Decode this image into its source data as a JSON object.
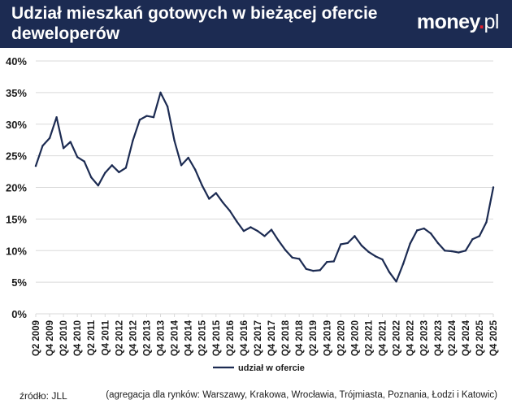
{
  "header": {
    "title": "Udział mieszkań gotowych w bieżącej ofercie deweloperów",
    "logo_main": "money",
    "logo_dot": ".",
    "logo_suffix": "pl"
  },
  "footer": {
    "source": "źródło: JLL",
    "note": "(agregacja dla rynków: Warszawy, Krakowa, Wrocławia, Trójmiasta, Poznania, Łodzi i Katowic)"
  },
  "colors": {
    "header_bg": "#1c2b52",
    "line": "#1c2b52",
    "grid": "#d9d9d9",
    "logo_dot": "#e4202e"
  },
  "chart_data": {
    "type": "line",
    "title": "Udział mieszkań gotowych w bieżącej ofercie deweloperów",
    "xlabel": "",
    "ylabel": "",
    "ylim": [
      0,
      40
    ],
    "yticks": [
      "0%",
      "5%",
      "10%",
      "15%",
      "20%",
      "25%",
      "30%",
      "35%",
      "40%"
    ],
    "grid": true,
    "legend_position": "bottom",
    "x": [
      "Q2 2009",
      "Q3 2009",
      "Q4 2009",
      "Q1 2010",
      "Q2 2010",
      "Q3 2010",
      "Q4 2010",
      "Q1 2011",
      "Q2 2011",
      "Q3 2011",
      "Q4 2011",
      "Q1 2012",
      "Q2 2012",
      "Q3 2012",
      "Q4 2012",
      "Q1 2013",
      "Q2 2013",
      "Q3 2013",
      "Q4 2013",
      "Q1 2014",
      "Q2 2014",
      "Q3 2014",
      "Q4 2014",
      "Q1 2015",
      "Q2 2015",
      "Q3 2015",
      "Q4 2015",
      "Q1 2016",
      "Q2 2016",
      "Q3 2016",
      "Q4 2016",
      "Q1 2017",
      "Q2 2017",
      "Q3 2017",
      "Q4 2017",
      "Q1 2018",
      "Q2 2018",
      "Q3 2018",
      "Q4 2018",
      "Q1 2019",
      "Q2 2019",
      "Q3 2019",
      "Q4 2019",
      "Q1 2020",
      "Q2 2020",
      "Q3 2020",
      "Q4 2020",
      "Q1 2021",
      "Q2 2021",
      "Q3 2021",
      "Q4 2021",
      "Q1 2022",
      "Q2 2022",
      "Q3 2022",
      "Q4 2022",
      "Q1 2023",
      "Q2 2023",
      "Q3 2023",
      "Q4 2023",
      "Q1 2024",
      "Q2 2024",
      "Q3 2024",
      "Q4 2024",
      "Q1 2025",
      "Q2 2025",
      "Q3 2025",
      "Q4 2025"
    ],
    "tick_labels": [
      "Q2 2009",
      "Q4 2009",
      "Q2 2010",
      "Q4 2010",
      "Q2 2011",
      "Q4 2011",
      "Q2 2012",
      "Q4 2012",
      "Q2 2013",
      "Q4 2013",
      "Q2 2014",
      "Q4 2014",
      "Q2 2015",
      "Q4 2015",
      "Q2 2016",
      "Q4 2016",
      "Q2 2017",
      "Q4 2017",
      "Q2 2018",
      "Q4 2018",
      "Q2 2019",
      "Q4 2019",
      "Q2 2020",
      "Q4 2020",
      "Q2 2021",
      "Q4 2021",
      "Q2 2022",
      "Q4 2022",
      "Q2 2023",
      "Q4 2023",
      "Q2 2024",
      "Q4 2024",
      "Q2 2025",
      "Q4 2025"
    ],
    "series": [
      {
        "name": "udział w ofercie",
        "values": [
          23.4,
          26.6,
          27.8,
          31.1,
          26.2,
          27.2,
          24.8,
          24.1,
          21.6,
          20.3,
          22.3,
          23.5,
          22.4,
          23.1,
          27.4,
          30.7,
          31.3,
          31.1,
          35.0,
          32.8,
          27.4,
          23.5,
          24.7,
          22.8,
          20.3,
          18.2,
          19.1,
          17.6,
          16.3,
          14.6,
          13.1,
          13.7,
          13.1,
          12.3,
          13.3,
          11.6,
          10.1,
          8.9,
          8.7,
          7.1,
          6.8,
          6.9,
          8.2,
          8.3,
          11.0,
          11.2,
          12.3,
          10.8,
          9.8,
          9.1,
          8.6,
          6.6,
          5.1,
          7.9,
          11.1,
          13.2,
          13.5,
          12.7,
          11.2,
          10.0,
          9.9,
          9.7,
          10.0,
          11.8,
          12.3,
          14.5,
          20.0
        ]
      }
    ]
  }
}
